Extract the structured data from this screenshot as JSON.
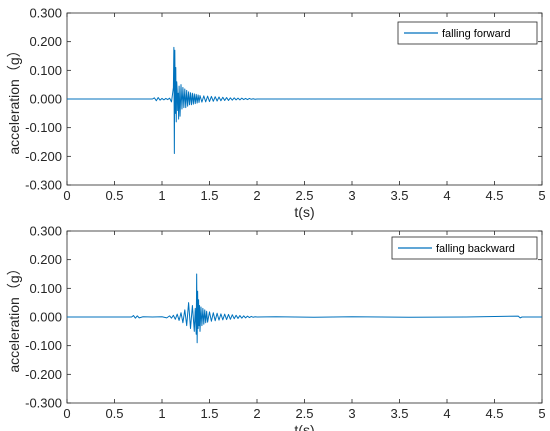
{
  "colors": {
    "series": "#0072BD",
    "axis": "#262626",
    "legend_border": "#262626"
  },
  "chart_data": [
    {
      "type": "line",
      "xlabel": "t(s)",
      "ylabel": "acceleration（g）",
      "xlim": [
        0,
        5
      ],
      "ylim": [
        -0.3,
        0.3
      ],
      "xticks": [
        "0",
        "0.5",
        "1",
        "1.5",
        "2",
        "2.5",
        "3",
        "3.5",
        "4",
        "4.5",
        "5"
      ],
      "yticks": [
        "0.300",
        "0.200",
        "0.100",
        "0.000",
        "-0.100",
        "-0.200",
        "-0.300"
      ],
      "grid": false,
      "legend": "top-right",
      "series": [
        {
          "name": "falling forward",
          "x": [
            0,
            0.9,
            0.92,
            0.94,
            0.96,
            0.98,
            1.0,
            1.02,
            1.04,
            1.06,
            1.08,
            1.1,
            1.12,
            1.125,
            1.13,
            1.135,
            1.14,
            1.145,
            1.15,
            1.155,
            1.16,
            1.165,
            1.17,
            1.175,
            1.18,
            1.19,
            1.2,
            1.21,
            1.22,
            1.23,
            1.24,
            1.25,
            1.26,
            1.27,
            1.28,
            1.29,
            1.3,
            1.31,
            1.32,
            1.33,
            1.34,
            1.35,
            1.36,
            1.37,
            1.38,
            1.39,
            1.4,
            1.42,
            1.44,
            1.46,
            1.48,
            1.5,
            1.52,
            1.54,
            1.56,
            1.58,
            1.6,
            1.62,
            1.64,
            1.66,
            1.68,
            1.7,
            1.72,
            1.74,
            1.76,
            1.78,
            1.8,
            1.82,
            1.84,
            1.86,
            1.88,
            1.9,
            1.92,
            1.94,
            1.96,
            1.98,
            2.0,
            2.1,
            2.3,
            2.5,
            5.0
          ],
          "y": [
            0.0,
            0.0,
            0.004,
            -0.006,
            0.005,
            -0.004,
            0.002,
            -0.003,
            0.002,
            -0.002,
            0.003,
            -0.01,
            0.04,
            0.18,
            -0.19,
            0.17,
            -0.05,
            0.11,
            -0.08,
            0.06,
            0.03,
            -0.04,
            0.02,
            -0.07,
            0.045,
            -0.06,
            0.05,
            -0.035,
            0.04,
            -0.03,
            0.035,
            -0.03,
            0.03,
            -0.025,
            0.025,
            -0.02,
            0.022,
            -0.02,
            0.02,
            -0.018,
            0.018,
            -0.016,
            0.016,
            -0.014,
            0.014,
            -0.012,
            0.012,
            -0.011,
            0.011,
            -0.01,
            0.01,
            -0.009,
            0.009,
            -0.008,
            0.008,
            -0.007,
            0.007,
            -0.006,
            0.006,
            -0.005,
            0.005,
            -0.005,
            0.004,
            -0.004,
            0.004,
            -0.003,
            0.003,
            -0.003,
            0.003,
            -0.002,
            0.002,
            -0.002,
            0.002,
            -0.001,
            0.001,
            -0.001,
            0.0,
            0.0,
            0.0,
            0.0,
            0.0
          ]
        }
      ]
    },
    {
      "type": "line",
      "xlabel": "t(s)",
      "ylabel": "acceleration（g）",
      "xlim": [
        0,
        5
      ],
      "ylim": [
        -0.3,
        0.3
      ],
      "xticks": [
        "0",
        "0.5",
        "1",
        "1.5",
        "2",
        "2.5",
        "3",
        "3.5",
        "4",
        "4.5",
        "5"
      ],
      "yticks": [
        "0.300",
        "0.200",
        "0.100",
        "0.000",
        "-0.100",
        "-0.200",
        "-0.300"
      ],
      "grid": false,
      "legend": "top-right",
      "series": [
        {
          "name": "falling backward",
          "x": [
            0,
            0.68,
            0.7,
            0.72,
            0.74,
            0.76,
            0.8,
            0.9,
            1.0,
            1.05,
            1.08,
            1.1,
            1.12,
            1.14,
            1.16,
            1.18,
            1.2,
            1.22,
            1.24,
            1.26,
            1.28,
            1.3,
            1.32,
            1.34,
            1.35,
            1.36,
            1.365,
            1.37,
            1.375,
            1.38,
            1.385,
            1.39,
            1.395,
            1.4,
            1.41,
            1.42,
            1.43,
            1.44,
            1.45,
            1.46,
            1.47,
            1.48,
            1.5,
            1.52,
            1.54,
            1.56,
            1.58,
            1.6,
            1.62,
            1.64,
            1.66,
            1.68,
            1.7,
            1.72,
            1.74,
            1.76,
            1.78,
            1.8,
            1.82,
            1.84,
            1.86,
            1.88,
            1.9,
            1.92,
            1.94,
            1.96,
            1.98,
            2.0,
            2.2,
            2.6,
            3.0,
            3.6,
            4.2,
            4.75,
            4.77,
            4.79,
            5.0
          ],
          "y": [
            0.0,
            0.0,
            0.005,
            -0.004,
            0.004,
            -0.003,
            0.001,
            0.0,
            0.001,
            -0.003,
            0.004,
            -0.004,
            0.006,
            -0.008,
            0.01,
            -0.012,
            0.015,
            -0.02,
            0.025,
            -0.03,
            0.05,
            -0.04,
            0.04,
            -0.05,
            0.03,
            -0.06,
            0.15,
            -0.09,
            0.09,
            -0.04,
            0.06,
            -0.03,
            0.04,
            -0.05,
            0.035,
            -0.03,
            0.03,
            -0.025,
            0.025,
            -0.02,
            0.02,
            -0.018,
            0.018,
            -0.015,
            0.015,
            -0.013,
            0.013,
            -0.011,
            0.011,
            -0.01,
            0.01,
            -0.009,
            0.009,
            -0.008,
            0.008,
            -0.006,
            0.006,
            -0.005,
            0.005,
            -0.004,
            0.004,
            -0.003,
            0.003,
            -0.002,
            0.002,
            -0.001,
            0.001,
            0.0,
            0.001,
            -0.001,
            0.001,
            -0.001,
            0.0,
            0.003,
            -0.003,
            0.0,
            0.0
          ]
        }
      ]
    }
  ]
}
